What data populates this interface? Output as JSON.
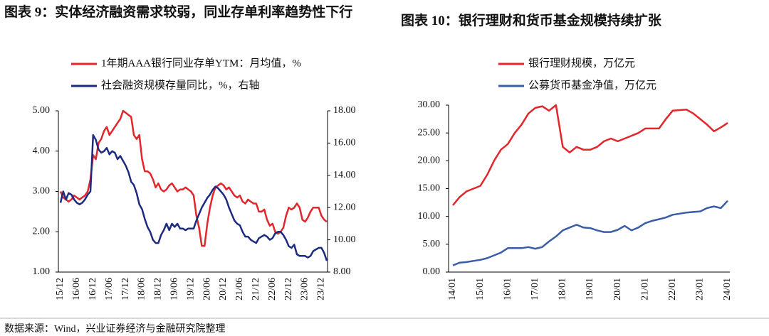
{
  "chart_data": [
    {
      "type": "line",
      "title": "图表 9：实体经济融资需求较弱，同业存单利率趋势性下行",
      "categories": [
        "15/12",
        null,
        null,
        null,
        null,
        null,
        "16/06",
        null,
        null,
        null,
        null,
        null,
        "16/12",
        null,
        null,
        null,
        null,
        null,
        "17/06",
        null,
        null,
        null,
        null,
        null,
        "17/12",
        null,
        null,
        null,
        null,
        null,
        "18/06",
        null,
        null,
        null,
        null,
        null,
        "18/12",
        null,
        null,
        null,
        null,
        null,
        "19/06",
        null,
        null,
        null,
        null,
        null,
        "19/12",
        null,
        null,
        null,
        null,
        null,
        "20/06",
        null,
        null,
        null,
        null,
        null,
        "20/12",
        null,
        null,
        null,
        null,
        null,
        "21/06",
        null,
        null,
        null,
        null,
        null,
        "21/12",
        null,
        null,
        null,
        null,
        null,
        "22/06",
        null,
        null,
        null,
        null,
        null,
        "22/12",
        null,
        null,
        null,
        null,
        null,
        "23/06",
        null,
        null,
        null,
        null,
        null,
        "23/12",
        null,
        null
      ],
      "series": [
        {
          "name": "1年期AAA银行同业存单YTM：月均值，%",
          "color": "#e3262c",
          "values": [
            3.0,
            2.85,
            2.8,
            2.75,
            2.8,
            2.9,
            2.85,
            2.8,
            2.85,
            2.9,
            3.0,
            3.3,
            3.9,
            3.8,
            4.2,
            4.3,
            4.5,
            4.6,
            4.4,
            4.5,
            4.6,
            4.7,
            4.8,
            5.0,
            4.95,
            4.9,
            4.85,
            4.4,
            4.3,
            4.4,
            3.8,
            3.5,
            3.5,
            3.45,
            3.3,
            3.1,
            3.2,
            3.05,
            3.0,
            3.05,
            3.15,
            3.2,
            3.1,
            3.0,
            3.05,
            3.05,
            3.1,
            3.05,
            3.0,
            2.9,
            2.4,
            2.1,
            1.65,
            1.65,
            2.2,
            2.6,
            2.9,
            3.1,
            3.15,
            3.2,
            3.15,
            3.05,
            3.1,
            3.0,
            2.9,
            2.85,
            2.9,
            2.75,
            2.7,
            2.8,
            2.75,
            2.7,
            2.7,
            2.5,
            2.5,
            2.55,
            2.3,
            2.15,
            2.2,
            2.0,
            1.95,
            2.0,
            2.1,
            2.4,
            2.6,
            2.55,
            2.6,
            2.7,
            2.6,
            2.3,
            2.25,
            2.35,
            2.5,
            2.6,
            2.6,
            2.6,
            2.4,
            2.3,
            2.25
          ]
        },
        {
          "name": "社会融资规模存量同比，%，右轴",
          "color": "#1c2a80",
          "axis": "y2",
          "values": [
            12.3,
            13.0,
            12.5,
            12.9,
            12.8,
            12.5,
            12.3,
            12.2,
            12.3,
            12.5,
            12.8,
            13.0,
            16.5,
            16.2,
            15.6,
            15.4,
            15.5,
            15.7,
            15.3,
            15.5,
            15.4,
            15.0,
            15.2,
            14.9,
            14.6,
            14.2,
            13.6,
            13.4,
            12.9,
            12.2,
            11.9,
            11.3,
            10.8,
            10.5,
            10.0,
            9.8,
            9.8,
            10.3,
            10.6,
            11.0,
            10.6,
            11.0,
            10.8,
            11.0,
            10.7,
            10.7,
            10.6,
            10.7,
            10.7,
            10.7,
            11.2,
            11.6,
            12.0,
            12.3,
            12.6,
            12.8,
            13.1,
            13.3,
            13.2,
            13.0,
            12.8,
            12.5,
            12.0,
            11.6,
            11.2,
            11.0,
            10.9,
            10.5,
            10.2,
            10.2,
            10.0,
            9.9,
            9.8,
            10.1,
            10.2,
            10.3,
            10.2,
            10.0,
            10.1,
            10.4,
            10.5,
            10.5,
            10.3,
            10.0,
            9.6,
            9.5,
            9.7,
            9.1,
            9.0,
            9.0,
            9.0,
            8.9,
            9.0,
            9.3,
            9.4,
            9.5,
            9.5,
            9.2,
            8.7
          ]
        }
      ],
      "ylim": [
        1,
        5
      ],
      "yticks": [
        {
          "value": 1,
          "label": "1.00"
        },
        {
          "value": 2,
          "label": "2.00"
        },
        {
          "value": 3,
          "label": "3.00"
        },
        {
          "value": 4,
          "label": "4.00"
        },
        {
          "value": 5,
          "label": "5.00"
        }
      ],
      "y2lim": [
        8,
        18
      ],
      "y2ticks": [
        {
          "value": 8,
          "label": "8.00"
        },
        {
          "value": 10,
          "label": "10.00"
        },
        {
          "value": 12,
          "label": "12.00"
        },
        {
          "value": 14,
          "label": "14.00"
        },
        {
          "value": 16,
          "label": "16.00"
        },
        {
          "value": 18,
          "label": "18.00"
        }
      ],
      "legend": "top-left"
    },
    {
      "type": "line",
      "title": "图表 10：银行理财和货币基金规模持续扩张",
      "categories": [
        "14/01",
        null,
        null,
        null,
        "15/01",
        null,
        null,
        null,
        "16/01",
        null,
        null,
        null,
        "17/01",
        null,
        null,
        null,
        "18/01",
        null,
        null,
        null,
        "19/01",
        null,
        null,
        null,
        "20/01",
        null,
        null,
        null,
        "21/01",
        null,
        null,
        null,
        "22/01",
        null,
        null,
        null,
        "23/01",
        null,
        null,
        null,
        "24/01"
      ],
      "series": [
        {
          "name": "银行理财规模，万亿元",
          "color": "#e3262c",
          "values": [
            12.0,
            13.5,
            14.5,
            15.0,
            15.5,
            17.5,
            20.0,
            22.0,
            23.0,
            25.0,
            26.5,
            28.5,
            29.5,
            29.8,
            29.0,
            30.0,
            22.5,
            21.5,
            22.5,
            22.0,
            22.0,
            22.5,
            23.5,
            24.0,
            23.5,
            24.0,
            24.5,
            25.0,
            25.8,
            25.8,
            25.8,
            27.5,
            29.0,
            29.1,
            29.2,
            28.5,
            27.5,
            26.5,
            25.3,
            26.0,
            26.8
          ]
        },
        {
          "name": "公募货币基金净值，万亿元",
          "color": "#3b5ca6",
          "values": [
            1.2,
            1.7,
            1.8,
            2.0,
            2.2,
            2.5,
            3.0,
            3.5,
            4.3,
            4.3,
            4.3,
            4.5,
            4.2,
            4.5,
            5.5,
            6.4,
            7.5,
            8.0,
            8.5,
            8.0,
            7.9,
            7.5,
            7.2,
            7.2,
            7.6,
            8.3,
            7.5,
            8.0,
            8.8,
            9.2,
            9.5,
            9.8,
            10.3,
            10.5,
            10.7,
            10.8,
            10.9,
            11.5,
            11.8,
            11.5,
            12.8
          ]
        }
      ],
      "ylim": [
        0,
        30
      ],
      "yticks": [
        {
          "value": 0,
          "label": "0.00"
        },
        {
          "value": 5,
          "label": "5.00"
        },
        {
          "value": 10,
          "label": "10.00"
        },
        {
          "value": 15,
          "label": "15.00"
        },
        {
          "value": 20,
          "label": "20.00"
        },
        {
          "value": 25,
          "label": "25.00"
        },
        {
          "value": 30,
          "label": "30.00"
        }
      ],
      "legend": "top-left"
    }
  ],
  "source": "数据来源：Wind，兴业证券经济与金融研究院整理"
}
